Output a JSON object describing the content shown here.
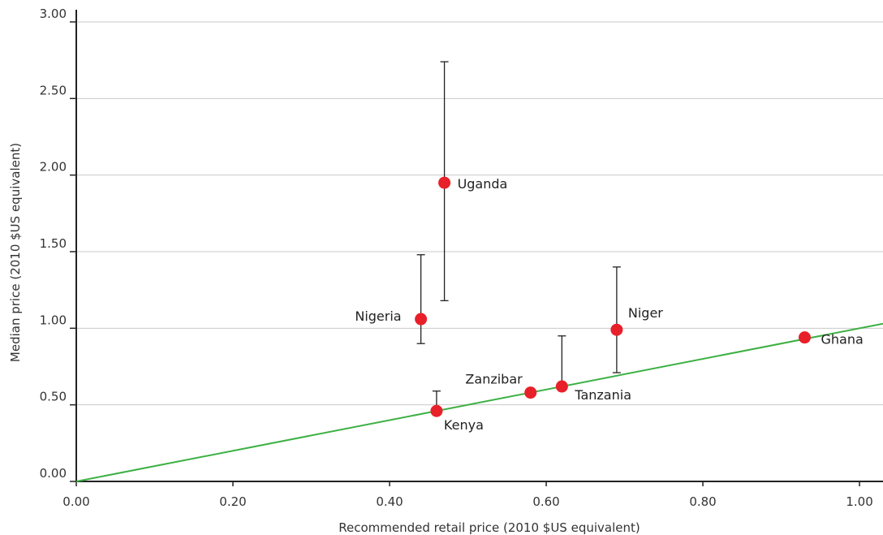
{
  "chart_data": {
    "type": "scatter",
    "title": "",
    "xlabel": "Recommended retail price (2010 $US equivalent)",
    "ylabel": "Median price (2010 $US equivalent)",
    "xlim": [
      0,
      1.03
    ],
    "ylim": [
      0,
      3.0
    ],
    "x_ticks": [
      "0.00",
      "0.20",
      "0.40",
      "0.60",
      "0.80",
      "1.00"
    ],
    "y_ticks": [
      "0.00",
      "0.50",
      "1.00",
      "1.50",
      "2.00",
      "2.50",
      "3.00"
    ],
    "grid": "horizontal",
    "points": [
      {
        "label": "Uganda",
        "x": 0.47,
        "y": 1.95,
        "err_low": 1.18,
        "err_high": 2.74
      },
      {
        "label": "Nigeria",
        "x": 0.44,
        "y": 1.06,
        "err_low": 0.9,
        "err_high": 1.48
      },
      {
        "label": "Niger",
        "x": 0.69,
        "y": 0.99,
        "err_low": 0.71,
        "err_high": 1.4
      },
      {
        "label": "Ghana",
        "x": 0.93,
        "y": 0.94
      },
      {
        "label": "Zanzibar",
        "x": 0.58,
        "y": 0.58
      },
      {
        "label": "Tanzania",
        "x": 0.62,
        "y": 0.62,
        "err_low": 0.62,
        "err_high": 0.95
      },
      {
        "label": "Kenya",
        "x": 0.46,
        "y": 0.46,
        "err_low": 0.46,
        "err_high": 0.59
      }
    ],
    "reference_line": {
      "x": [
        0,
        1.03
      ],
      "y": [
        0,
        1.03
      ],
      "color": "#3cb043"
    },
    "point_color": "#e8202a"
  }
}
